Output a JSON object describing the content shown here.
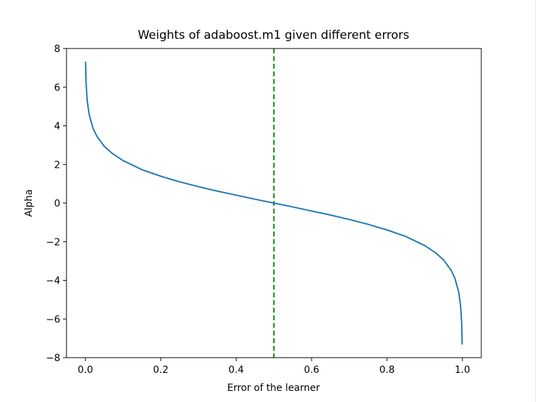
{
  "chart_data": {
    "type": "line",
    "title": "Weights of adaboost.m1 given different errors",
    "xlabel": "Error of the learner",
    "ylabel": "Alpha",
    "xlim": [
      -0.05,
      1.05
    ],
    "ylim": [
      -8,
      8
    ],
    "x_ticks": [
      0.0,
      0.2,
      0.4,
      0.6,
      0.8,
      1.0
    ],
    "x_tick_labels": [
      "0.0",
      "0.2",
      "0.4",
      "0.6",
      "0.8",
      "1.0"
    ],
    "y_ticks": [
      -8,
      -6,
      -4,
      -2,
      0,
      2,
      4,
      6,
      8
    ],
    "y_tick_labels": [
      "−8",
      "−6",
      "−4",
      "−2",
      "0",
      "2",
      "4",
      "6",
      "8"
    ],
    "grid": false,
    "series": [
      {
        "color": "#1f77b4",
        "x": [
          0.00066,
          0.002,
          0.005,
          0.01,
          0.02,
          0.03,
          0.05,
          0.07,
          0.1,
          0.15,
          0.2,
          0.25,
          0.3,
          0.35,
          0.4,
          0.45,
          0.5,
          0.55,
          0.6,
          0.65,
          0.7,
          0.75,
          0.8,
          0.85,
          0.9,
          0.93,
          0.95,
          0.97,
          0.98,
          0.99,
          0.995,
          0.998,
          0.99934
        ],
        "y": [
          7.32,
          6.21,
          5.29,
          4.6,
          3.89,
          3.48,
          2.94,
          2.59,
          2.2,
          1.73,
          1.39,
          1.1,
          0.85,
          0.62,
          0.41,
          0.2,
          0.0,
          -0.2,
          -0.41,
          -0.62,
          -0.85,
          -1.1,
          -1.39,
          -1.73,
          -2.2,
          -2.59,
          -2.94,
          -3.48,
          -3.89,
          -4.6,
          -5.29,
          -6.21,
          -7.32
        ]
      }
    ],
    "reference_line": {
      "orientation": "vertical",
      "x": 0.5,
      "style": "dashed",
      "color": "#008000"
    }
  }
}
